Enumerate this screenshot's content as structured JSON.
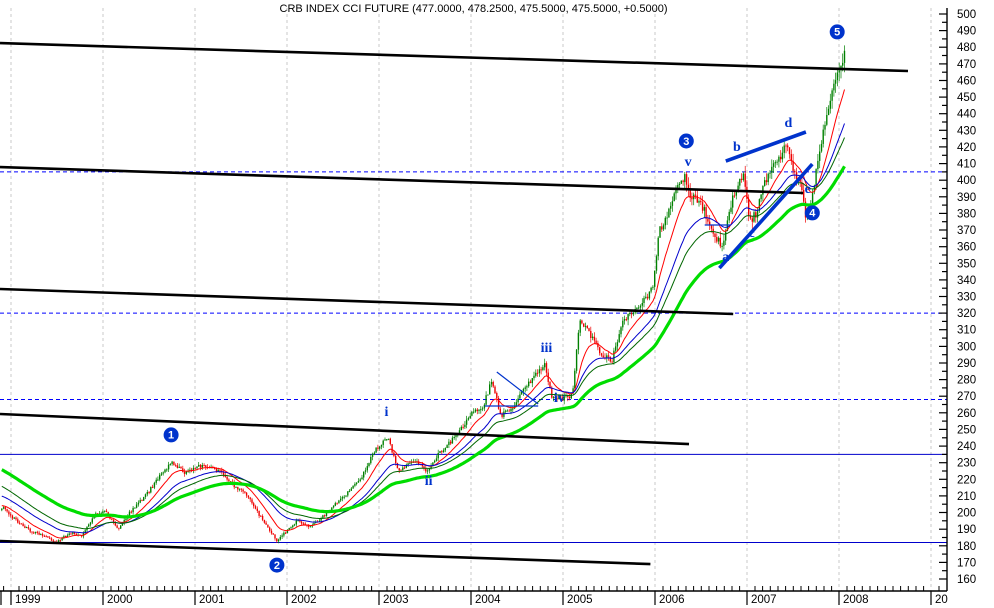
{
  "title": "CRB INDEX CCI FUTURE (477.0000, 478.2500, 475.5000, 475.5000, +0.5000)",
  "quote": {
    "open": "477.0000",
    "high": "478.2500",
    "low": "475.5000",
    "close": "475.5000",
    "change": "+0.5000"
  },
  "colors": {
    "up_candle": "#008000",
    "down_candle": "#ee0000",
    "ma_fast": "#ff0000",
    "ma_mid": "#0000cc",
    "ma_slow": "#006600",
    "ma_slowest": "#00dd00",
    "trendline_black": "#000000",
    "annotation_blue": "#0033cc",
    "level_blue": "#0000cc",
    "grid_gray": "#c8c8c8"
  },
  "y_axis": {
    "min": 160,
    "max": 500,
    "step": 10,
    "labels": [
      "500",
      "490",
      "480",
      "470",
      "460",
      "450",
      "440",
      "430",
      "420",
      "410",
      "400",
      "390",
      "380",
      "370",
      "360",
      "350",
      "340",
      "330",
      "320",
      "310",
      "300",
      "290",
      "280",
      "270",
      "260",
      "250",
      "240",
      "230",
      "220",
      "210",
      "200",
      "190",
      "180",
      "170",
      "160"
    ]
  },
  "x_axis": {
    "year_labels": [
      "1999",
      "2000",
      "2001",
      "2002",
      "2003",
      "2004",
      "2005",
      "2006",
      "2007",
      "2008",
      "20"
    ],
    "first_year": 1999
  },
  "chart_data": {
    "type": "candlestick",
    "instrument": "CRB INDEX CCI FUTURE",
    "period": "weekly",
    "x_range": [
      1998.9,
      2009.2
    ],
    "y_range": [
      160,
      500
    ],
    "close_keyframes": [
      [
        1998.91,
        203
      ],
      [
        1999.04,
        196
      ],
      [
        1999.21,
        189
      ],
      [
        1999.37,
        186
      ],
      [
        1999.5,
        182
      ],
      [
        1999.64,
        188
      ],
      [
        1999.77,
        186
      ],
      [
        1999.91,
        199
      ],
      [
        2000.02,
        201
      ],
      [
        2000.16,
        190
      ],
      [
        2000.29,
        200
      ],
      [
        2000.46,
        210
      ],
      [
        2000.62,
        222
      ],
      [
        2000.75,
        230
      ],
      [
        2000.89,
        224
      ],
      [
        2001.05,
        228
      ],
      [
        2001.18,
        227
      ],
      [
        2001.29,
        224
      ],
      [
        2001.43,
        216
      ],
      [
        2001.58,
        210
      ],
      [
        2001.68,
        200
      ],
      [
        2001.79,
        191
      ],
      [
        2001.89,
        183
      ],
      [
        2002.0,
        189
      ],
      [
        2002.11,
        195
      ],
      [
        2002.25,
        191
      ],
      [
        2002.38,
        197
      ],
      [
        2002.52,
        205
      ],
      [
        2002.68,
        213
      ],
      [
        2002.82,
        222
      ],
      [
        2002.96,
        238
      ],
      [
        2003.1,
        245
      ],
      [
        2003.21,
        224
      ],
      [
        2003.32,
        229
      ],
      [
        2003.42,
        231
      ],
      [
        2003.52,
        224
      ],
      [
        2003.64,
        235
      ],
      [
        2003.77,
        242
      ],
      [
        2003.9,
        251
      ],
      [
        2004.01,
        260
      ],
      [
        2004.12,
        262
      ],
      [
        2004.23,
        280
      ],
      [
        2004.32,
        258
      ],
      [
        2004.45,
        263
      ],
      [
        2004.55,
        272
      ],
      [
        2004.66,
        280
      ],
      [
        2004.8,
        289
      ],
      [
        2004.88,
        270
      ],
      [
        2004.99,
        268
      ],
      [
        2005.1,
        271
      ],
      [
        2005.18,
        315
      ],
      [
        2005.29,
        308
      ],
      [
        2005.42,
        295
      ],
      [
        2005.53,
        291
      ],
      [
        2005.64,
        314
      ],
      [
        2005.75,
        320
      ],
      [
        2005.86,
        327
      ],
      [
        2005.97,
        334
      ],
      [
        2006.05,
        370
      ],
      [
        2006.14,
        380
      ],
      [
        2006.23,
        395
      ],
      [
        2006.32,
        402
      ],
      [
        2006.38,
        392
      ],
      [
        2006.47,
        388
      ],
      [
        2006.55,
        380
      ],
      [
        2006.64,
        368
      ],
      [
        2006.73,
        360
      ],
      [
        2006.81,
        383
      ],
      [
        2006.9,
        398
      ],
      [
        2006.97,
        402
      ],
      [
        2007.03,
        375
      ],
      [
        2007.1,
        380
      ],
      [
        2007.18,
        398
      ],
      [
        2007.27,
        408
      ],
      [
        2007.36,
        414
      ],
      [
        2007.43,
        422
      ],
      [
        2007.5,
        408
      ],
      [
        2007.58,
        398
      ],
      [
        2007.64,
        376
      ],
      [
        2007.71,
        390
      ],
      [
        2007.77,
        412
      ],
      [
        2007.84,
        432
      ],
      [
        2007.9,
        448
      ],
      [
        2007.97,
        460
      ],
      [
        2008.02,
        470
      ],
      [
        2008.06,
        476
      ]
    ],
    "moving_averages": [
      {
        "name": "ma-fast",
        "period": 13,
        "color": "#ff0000",
        "width": 1,
        "seed_offset": 2
      },
      {
        "name": "ma-mid",
        "period": 30,
        "color": "#0000cc",
        "width": 1,
        "seed_offset": 8
      },
      {
        "name": "ma-slow",
        "period": 42,
        "color": "#006600",
        "width": 1,
        "seed_offset": 14
      },
      {
        "name": "ma-slowest",
        "period": 75,
        "color": "#00dd00",
        "width": 3.2,
        "seed_offset": 24
      }
    ],
    "levels_dashed": [
      405,
      320,
      268
    ],
    "levels_solid": [
      235,
      182
    ],
    "black_trendlines": [
      {
        "t1": 1998.88,
        "p1": 482.5,
        "t2": 2008.75,
        "p2": 465.7
      },
      {
        "t1": 1998.88,
        "p1": 407.9,
        "t2": 2007.61,
        "p2": 392.3
      },
      {
        "t1": 1998.88,
        "p1": 334.5,
        "t2": 2006.85,
        "p2": 319.5
      },
      {
        "t1": 1998.88,
        "p1": 259.3,
        "t2": 2006.37,
        "p2": 241.2
      },
      {
        "t1": 1998.88,
        "p1": 182.9,
        "t2": 2005.95,
        "p2": 169.0
      }
    ],
    "blue_channel_lines": [
      {
        "t1": 2006.77,
        "p1": 411.5,
        "t2": 2007.64,
        "p2": 429.0
      },
      {
        "t1": 2006.7,
        "p1": 347.1,
        "t2": 2007.71,
        "p2": 409.7
      }
    ],
    "blue_thin_lines": [
      {
        "t1": 2004.28,
        "p1": 284.6,
        "t2": 2004.73,
        "p2": 265.3
      },
      {
        "t1": 2004.15,
        "p1": 264.1,
        "t2": 2004.73,
        "p2": 264.1
      },
      {
        "t1": 2006.54,
        "p1": 373.0,
        "t2": 2006.82,
        "p2": 373.0
      }
    ],
    "wave_markers": [
      {
        "label": "1",
        "t": 2000.74,
        "price": 246.7
      },
      {
        "label": "2",
        "t": 2001.89,
        "price": 168.4
      },
      {
        "label": "3",
        "t": 2006.34,
        "price": 423.6
      },
      {
        "label": "4",
        "t": 2007.71,
        "price": 380.3
      },
      {
        "label": "5",
        "t": 2007.98,
        "price": 489.2
      }
    ],
    "letter_labels": [
      {
        "label": "v",
        "t": 2006.36,
        "price": 410.9
      },
      {
        "label": "b",
        "t": 2006.89,
        "price": 420.0
      },
      {
        "label": "d",
        "t": 2007.45,
        "price": 434.4
      },
      {
        "label": "e",
        "t": 2007.66,
        "price": 394.7
      },
      {
        "label": "a",
        "t": 2006.77,
        "price": 353.8
      },
      {
        "label": "c",
        "t": 2007.05,
        "price": 368.2
      },
      {
        "label": "i",
        "t": 2003.08,
        "price": 260.5
      },
      {
        "label": "ii",
        "t": 2003.54,
        "price": 219.0
      },
      {
        "label": "iii",
        "t": 2004.82,
        "price": 299.0
      },
      {
        "label": "iv",
        "t": 2004.96,
        "price": 268.9
      }
    ]
  }
}
